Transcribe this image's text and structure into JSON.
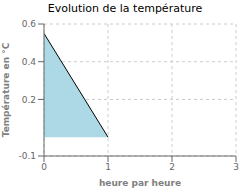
{
  "chart_data": {
    "type": "area",
    "title": "Evolution de la température",
    "xlabel": "heure par heure",
    "ylabel": "Température en °C",
    "x": [
      0,
      1
    ],
    "values": [
      0.55,
      0.0
    ],
    "baseline": 0.0,
    "color": "#add8e6",
    "xlim": [
      0,
      3
    ],
    "ylim": [
      -0.1,
      0.6
    ],
    "xticks": [
      0,
      1,
      2,
      3
    ],
    "yticks": [
      -0.1,
      0.2,
      0.4,
      0.6
    ],
    "grid": true
  }
}
